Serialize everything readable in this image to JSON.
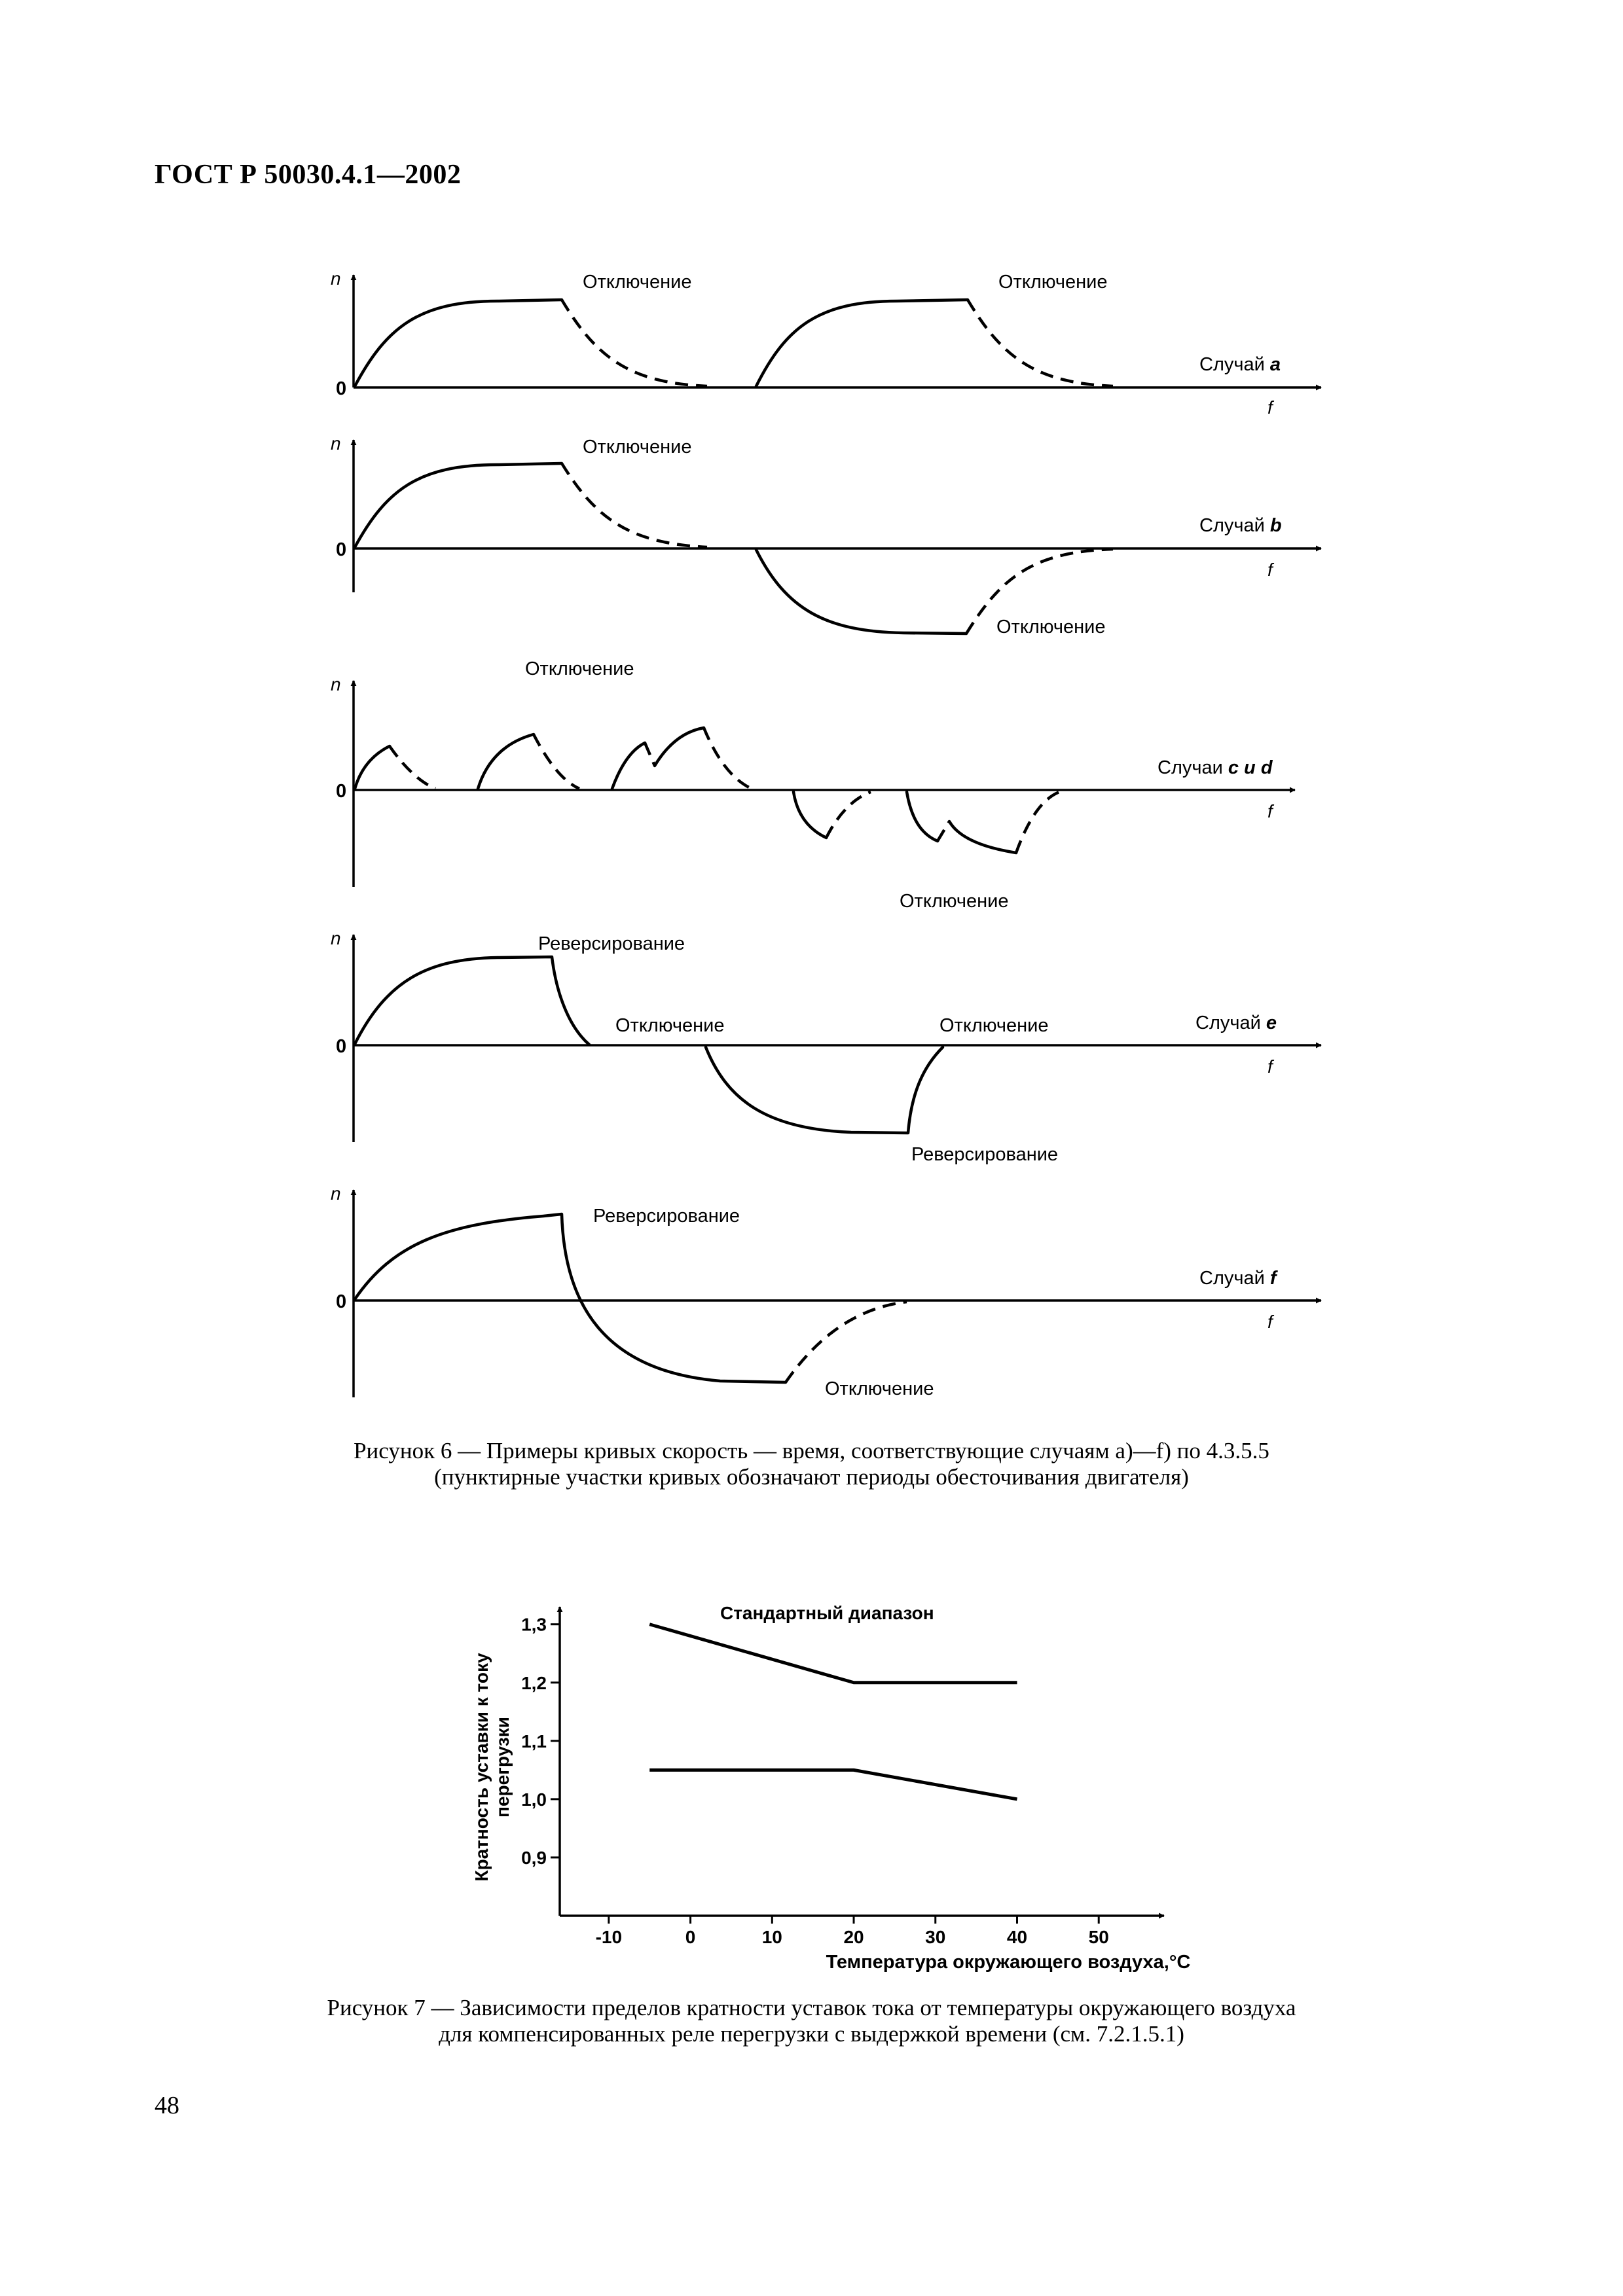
{
  "header": {
    "title": "ГОСТ Р 50030.4.1—2002"
  },
  "page_number": "48",
  "figure6": {
    "axis_y_label": "n",
    "axis_x_label": "f",
    "zero_label": "0",
    "panels": [
      {
        "case_prefix": "Случай ",
        "case_letter": "a",
        "labels": [
          "Отключение",
          "Отключение"
        ]
      },
      {
        "case_prefix": "Случай ",
        "case_letter": "b",
        "labels": [
          "Отключение",
          "Отключение"
        ]
      },
      {
        "case_prefix": "Случаи ",
        "case_letter": "c и d",
        "labels": [
          "Отключение",
          "Отключение"
        ]
      },
      {
        "case_prefix": "Случай ",
        "case_letter": "e",
        "labels": [
          "Реверсирование",
          "Отключение",
          "Отключение",
          "Реверсирование"
        ]
      },
      {
        "case_prefix": "Случай ",
        "case_letter": "f",
        "labels": [
          "Реверсирование",
          "Отключение"
        ]
      }
    ],
    "caption_line1": "Рисунок 6 — Примеры кривых скорость — время, соответствующие случаям a)—f) по 4.3.5.5",
    "caption_line2": "(пунктирные участки кривых обозначают периоды обесточивания двигателя)"
  },
  "figure7": {
    "caption_line1": "Рисунок 7 — Зависимости пределов кратности уставок тока от температуры окружающего воздуха",
    "caption_line2": "для компенсированных реле перегрузки с выдержкой времени (см. 7.2.1.5.1)"
  },
  "chart_data": {
    "type": "line",
    "title": "Стандартный диапазон",
    "xlabel": "Температура окружающего воздуха,°С",
    "ylabel_line1": "Кратность уставки к току",
    "ylabel_line2": "перегрузки",
    "xticks": [
      -10,
      0,
      10,
      20,
      30,
      40,
      50
    ],
    "xtick_labels": [
      "-10",
      "0",
      "10",
      "20",
      "30",
      "40",
      "50"
    ],
    "yticks": [
      0.9,
      1.0,
      1.1,
      1.2,
      1.3
    ],
    "ytick_labels": [
      "0,9",
      "1,0",
      "1,1",
      "1,2",
      "1,3"
    ],
    "xlim": [
      -16,
      58
    ],
    "ylim": [
      0.8,
      1.33
    ],
    "series": [
      {
        "x": [
          -5,
          20,
          40
        ],
        "y": [
          1.3,
          1.2,
          1.2
        ]
      },
      {
        "x": [
          -5,
          20,
          40
        ],
        "y": [
          1.05,
          1.05,
          1.0
        ]
      }
    ]
  }
}
